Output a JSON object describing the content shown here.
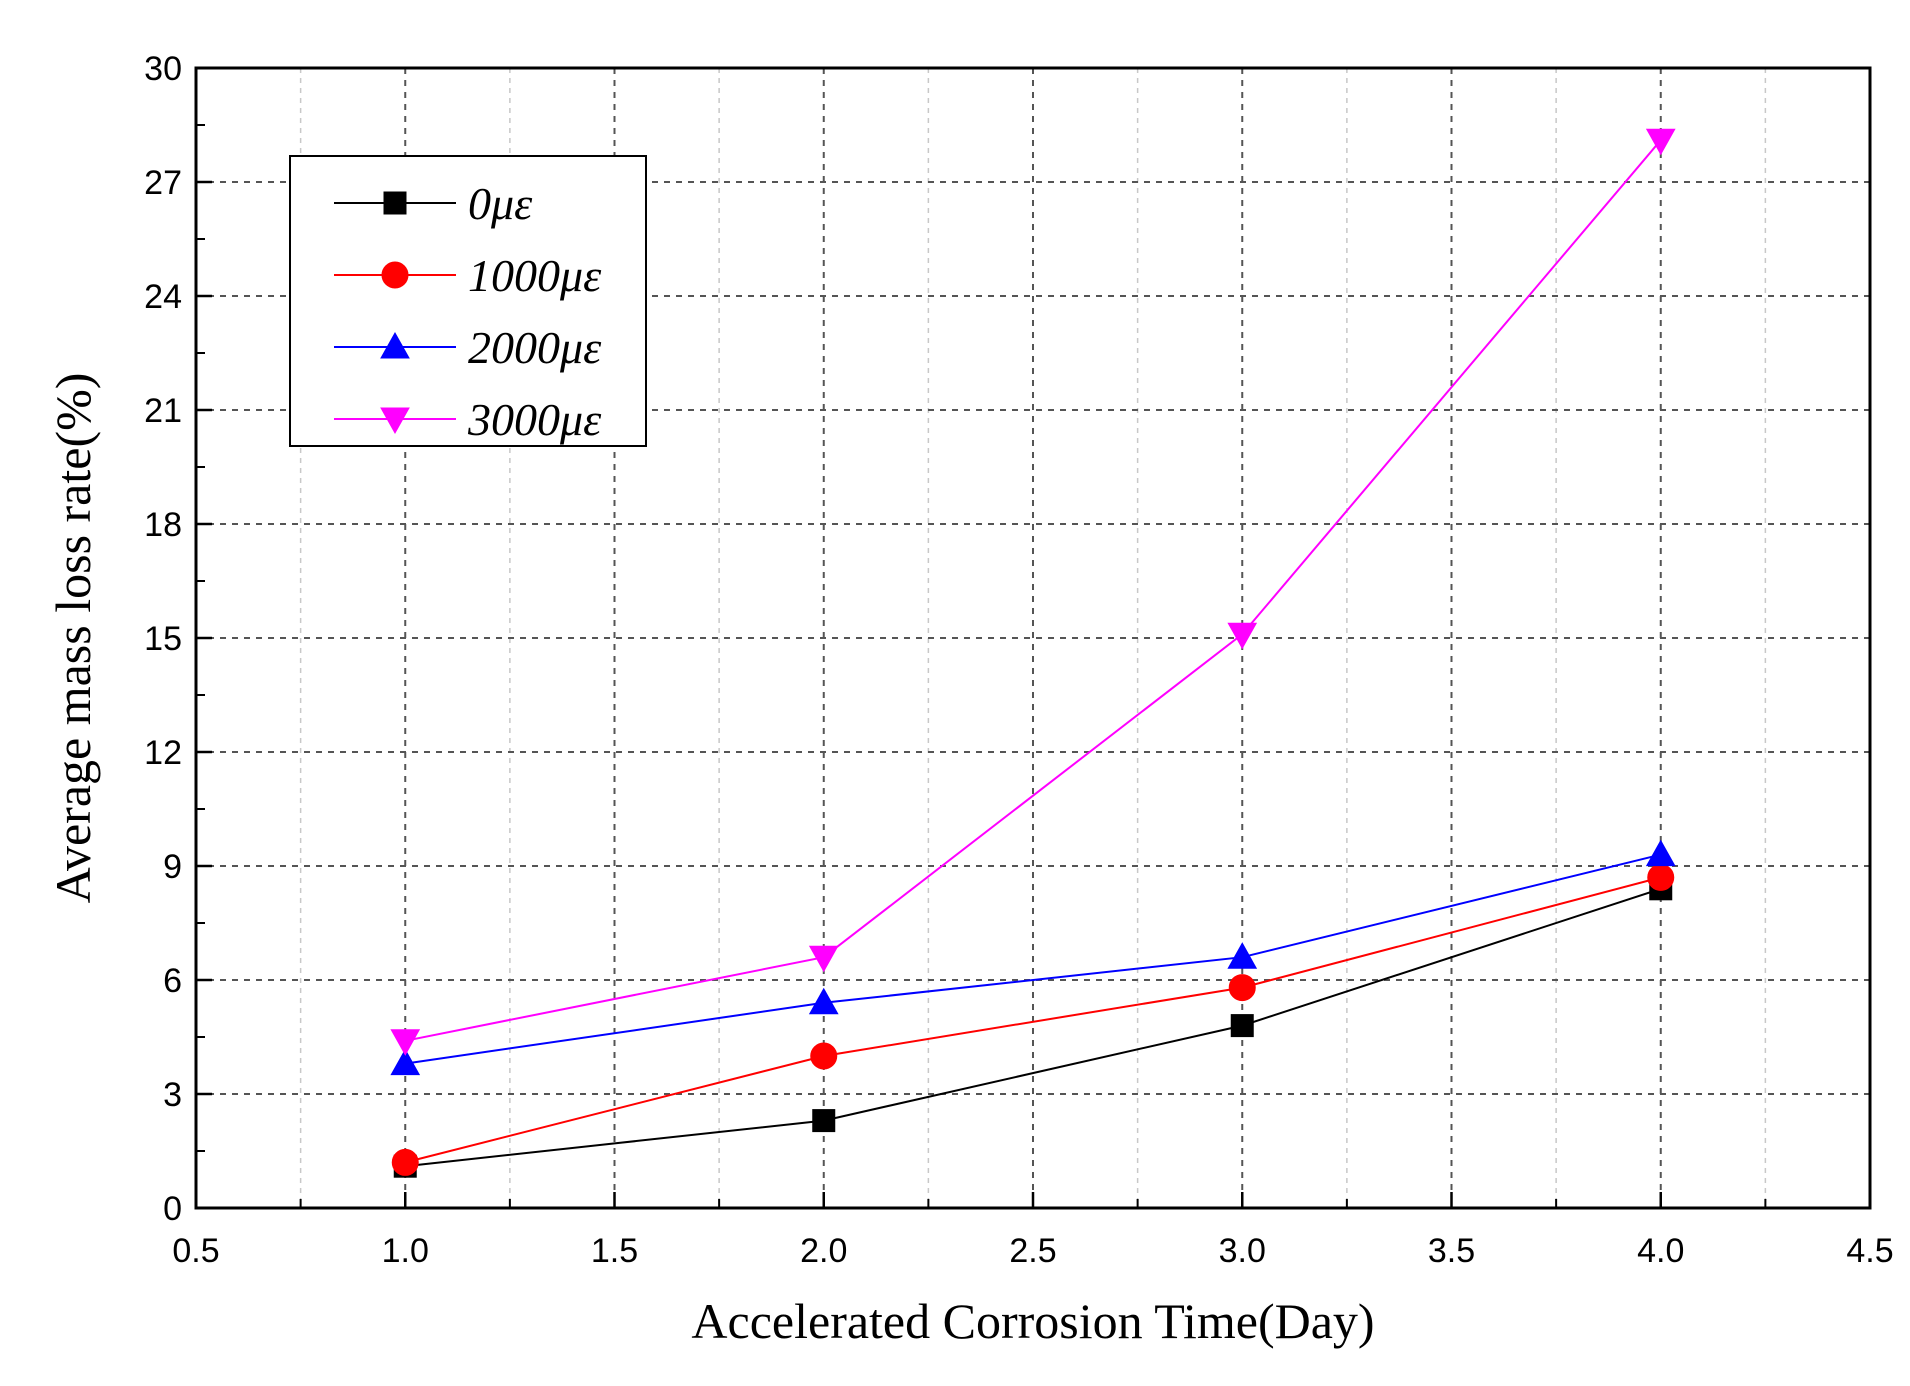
{
  "chart_data": {
    "type": "line",
    "xlabel": "Accelerated Corrosion Time(Day)",
    "ylabel": "Average mass loss rate(%)",
    "xlim": [
      0.5,
      4.5
    ],
    "ylim": [
      0,
      30
    ],
    "xticks": [
      "0.5",
      "1.0",
      "1.5",
      "2.0",
      "2.5",
      "3.0",
      "3.5",
      "4.0",
      "4.5"
    ],
    "yticks": [
      "0",
      "3",
      "6",
      "9",
      "12",
      "15",
      "18",
      "21",
      "24",
      "27",
      "30"
    ],
    "grid": true,
    "legend_position": "top-left",
    "x": [
      1.0,
      2.0,
      3.0,
      4.0
    ],
    "series": [
      {
        "name": "0με",
        "color": "#000000",
        "marker": "square",
        "values": [
          1.1,
          2.3,
          4.8,
          8.4
        ]
      },
      {
        "name": "1000με",
        "color": "#ff0000",
        "marker": "circle",
        "values": [
          1.2,
          4.0,
          5.8,
          8.7
        ]
      },
      {
        "name": "2000με",
        "color": "#0000ff",
        "marker": "triangle-up",
        "values": [
          3.8,
          5.4,
          6.6,
          9.3
        ]
      },
      {
        "name": "3000με",
        "color": "#ff00ff",
        "marker": "triangle-down",
        "values": [
          4.4,
          6.6,
          15.1,
          28.1
        ]
      }
    ]
  }
}
